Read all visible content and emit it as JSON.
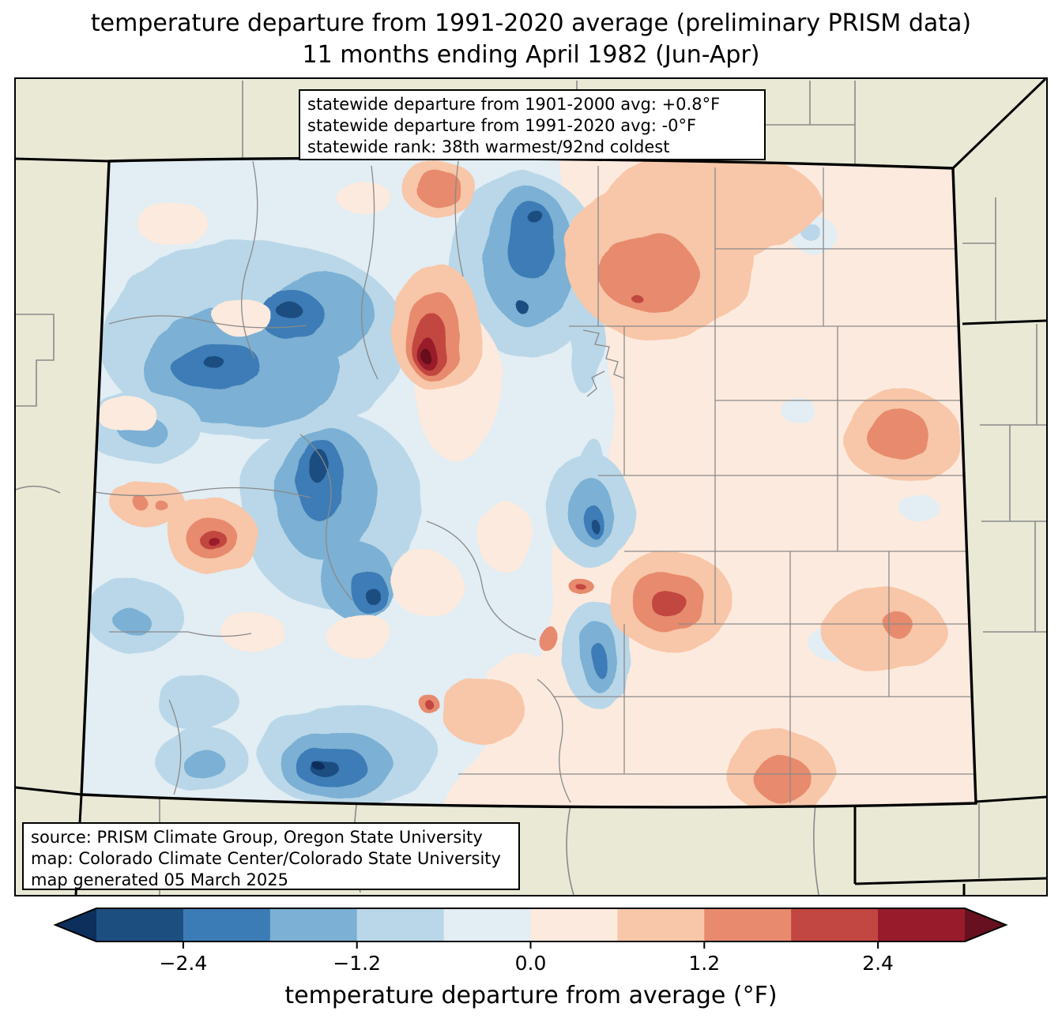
{
  "title": {
    "line1": "temperature departure from 1991-2020 average (preliminary PRISM data)",
    "line2": "11 months ending April 1982 (Jun-Apr)"
  },
  "stats_box": {
    "lines": [
      "statewide departure from 1901-2000 avg: +0.8°F",
      "statewide departure from 1991-2020 avg: -0°F",
      "statewide rank: 38th warmest/92nd coldest"
    ]
  },
  "source_box": {
    "lines": [
      "source: PRISM Climate Group, Oregon State University",
      "map: Colorado Climate Center/Colorado State University",
      "map generated 05 March 2025"
    ]
  },
  "colorbar": {
    "label": "temperature departure from average (°F)",
    "min": -3.0,
    "max": 3.0,
    "segment_colors": [
      "#1d4e80",
      "#3c7cb6",
      "#7cb0d4",
      "#b9d7e8",
      "#e2edf4",
      "#fceade",
      "#f8c6a8",
      "#e78a6d",
      "#c24641",
      "#981b2c"
    ],
    "extend_left_color": "#0d2f5c",
    "extend_right_color": "#67101f",
    "ticks": [
      {
        "value": -2.4,
        "label": "−2.4"
      },
      {
        "value": -1.2,
        "label": "−1.2"
      },
      {
        "value": 0.0,
        "label": "0.0"
      },
      {
        "value": 1.2,
        "label": "1.2"
      },
      {
        "value": 2.4,
        "label": "2.4"
      }
    ]
  },
  "map": {
    "region": "Colorado",
    "land_color": "#e9e9d6",
    "county_line_color": "#8a8a8a",
    "state_border_color": "#000000",
    "cool_base_color": "#e2edf4",
    "warm_base_color": "#fceade"
  },
  "chart_data": {
    "type": "heatmap",
    "title": "temperature departure from 1991-2020 average (preliminary PRISM data)",
    "subtitle": "11 months ending April 1982 (Jun-Apr)",
    "region": "Colorado",
    "colorbar_label": "temperature departure from average (°F)",
    "colorbar_tick_labels": [
      "−2.4",
      "−1.2",
      "0.0",
      "1.2",
      "2.4"
    ],
    "colorbar_range_F": [
      -3.0,
      3.0
    ],
    "bin_width_F": 0.6,
    "statewide_departure_from_1901_2000_avg_F": "+0.8",
    "statewide_departure_from_1991_2020_avg_F": "-0",
    "statewide_rank": "38th warmest/92nd coldest"
  }
}
